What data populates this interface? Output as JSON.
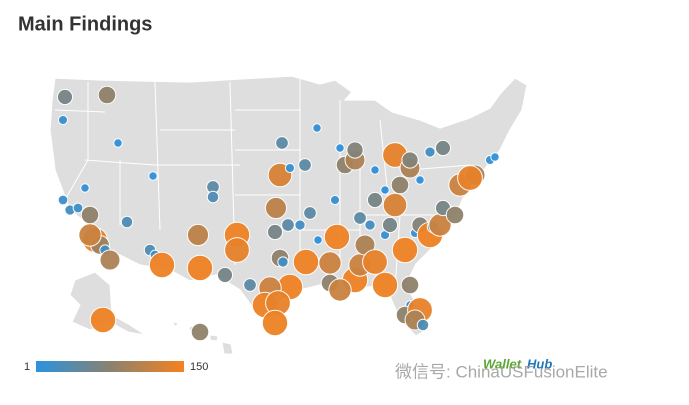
{
  "header": {
    "title": "Main Findings"
  },
  "legend": {
    "min": 1,
    "max": 150
  },
  "logo": {
    "first": "Wallet",
    "second": "Hub"
  },
  "watermark": {
    "text": "微信号: ChinaUSFusionElite"
  },
  "map": {
    "ranks": [
      60,
      10,
      80,
      5,
      5,
      5,
      15,
      20,
      15,
      80,
      140,
      90,
      20,
      100,
      120,
      30,
      30,
      15,
      145,
      145,
      110,
      40,
      30,
      145,
      140,
      110,
      130,
      40,
      10,
      40,
      40,
      60,
      40,
      80,
      20,
      145,
      145,
      120,
      145,
      140,
      145,
      5,
      145,
      10,
      120,
      80,
      145,
      120,
      120,
      100,
      140,
      145,
      10,
      60,
      20,
      40,
      5,
      80,
      100,
      70,
      5,
      60,
      5,
      140,
      80,
      100,
      130,
      145,
      10,
      70,
      145,
      30,
      120,
      60,
      80,
      120,
      100,
      140,
      10,
      5,
      20,
      60,
      70,
      5,
      20,
      5,
      5,
      80,
      140,
      100,
      30,
      80,
      145,
      80,
      40,
      60
    ]
  }
}
